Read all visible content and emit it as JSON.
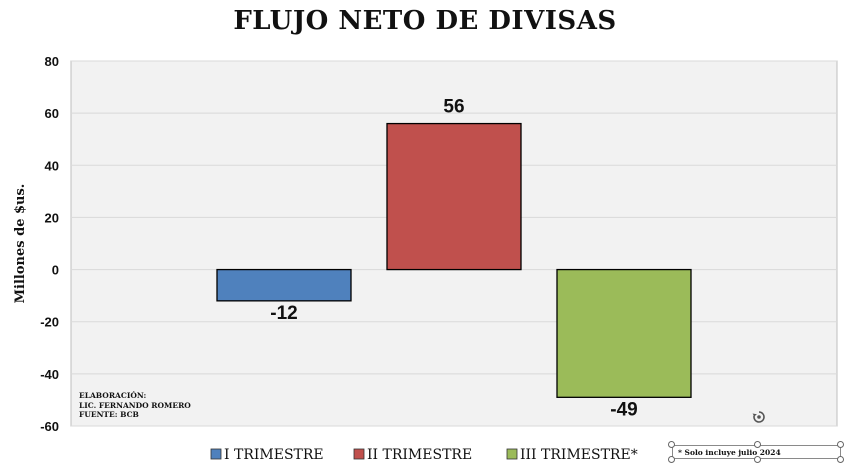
{
  "chart_data": {
    "type": "bar",
    "title": "FLUJO NETO DE DIVISAS",
    "ylabel": "Millones de $us.",
    "xlabel": "",
    "ylim": [
      -60,
      80
    ],
    "yticks": [
      -60,
      -40,
      -20,
      0,
      20,
      40,
      60,
      80
    ],
    "grid": true,
    "legend_position": "bottom",
    "categories": [
      "I TRIMESTRE",
      "II TRIMESTRE",
      "III TRIMESTRE*"
    ],
    "values": [
      -12,
      56,
      -49
    ],
    "data_labels": [
      "-12",
      "56",
      "-49"
    ],
    "colors": [
      "#4f81bd",
      "#c0504d",
      "#9bbb59"
    ]
  },
  "credits": [
    "ELABORACIÓN:",
    "LIC. FERNANDO ROMERO",
    "FUENTE: BCB"
  ],
  "note": "* Solo incluye julio 2024",
  "style": {
    "plot_background": "#f2f2f2",
    "grid_color": "#d9d9d9",
    "bar_border": "#000000"
  }
}
